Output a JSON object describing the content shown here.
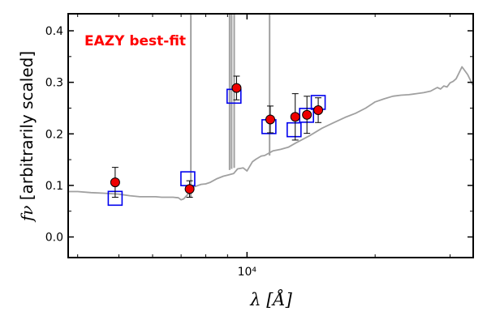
{
  "chart_data": {
    "type": "scatter",
    "title": "",
    "annotation": {
      "text": "EAZY best-fit",
      "color": "#ff0000"
    },
    "xlabel": {
      "symbol": "λ",
      "unit": "[Å]"
    },
    "ylabel": {
      "symbol": "fν",
      "text": "[arbitrarily scaled]"
    },
    "xscale": "log",
    "xlim": [
      3800,
      34000
    ],
    "ylim": [
      -0.04,
      0.433
    ],
    "xticks": [
      {
        "value": 10000,
        "label": "10⁴"
      }
    ],
    "yticks": [
      {
        "value": 0.0,
        "label": "0.0"
      },
      {
        "value": 0.1,
        "label": "0.1"
      },
      {
        "value": 0.2,
        "label": "0.2"
      },
      {
        "value": 0.3,
        "label": "0.3"
      },
      {
        "value": 0.4,
        "label": "0.4"
      }
    ],
    "colors": {
      "template": "#a0a0a0",
      "model_markers": "#0000ee",
      "observed_markers": "#ee0000",
      "errorbars": "#000000"
    },
    "series": [
      {
        "name": "EAZY best-fit template",
        "type": "line",
        "x": [
          3800,
          4000,
          4300,
          4600,
          5000,
          5300,
          5600,
          5900,
          6100,
          6300,
          6500,
          6700,
          6900,
          7000,
          7100,
          7300,
          7500,
          7800,
          8000,
          8200,
          8500,
          8800,
          9000,
          9300,
          9500,
          9800,
          10000,
          10300,
          10500,
          10800,
          11000,
          11500,
          12000,
          12500,
          13000,
          14000,
          15000,
          16000,
          17000,
          18000,
          19000,
          20000,
          21000,
          22000,
          23000,
          24000,
          25000,
          26000,
          27000,
          28000,
          28500,
          29000,
          29500,
          30000,
          30500,
          31000,
          32000,
          33000,
          34000
        ],
        "y": [
          0.088,
          0.088,
          0.086,
          0.085,
          0.083,
          0.08,
          0.078,
          0.078,
          0.078,
          0.077,
          0.077,
          0.077,
          0.076,
          0.072,
          0.074,
          0.085,
          0.097,
          0.102,
          0.103,
          0.106,
          0.113,
          0.118,
          0.12,
          0.123,
          0.132,
          0.134,
          0.128,
          0.146,
          0.151,
          0.157,
          0.158,
          0.167,
          0.17,
          0.174,
          0.182,
          0.196,
          0.211,
          0.222,
          0.232,
          0.24,
          0.25,
          0.262,
          0.268,
          0.273,
          0.275,
          0.276,
          0.278,
          0.28,
          0.283,
          0.29,
          0.287,
          0.293,
          0.291,
          0.299,
          0.302,
          0.307,
          0.33,
          0.315,
          0.293
        ]
      },
      {
        "name": "template emission lines",
        "type": "vlines",
        "x": [
          7380,
          9100,
          9200,
          9330,
          11300
        ],
        "y0": [
          0.076,
          0.13,
          0.132,
          0.134,
          0.158
        ],
        "y1": [
          0.433,
          0.433,
          0.433,
          0.433,
          0.433
        ]
      },
      {
        "name": "model photometry",
        "type": "scatter",
        "marker": "square",
        "x": [
          4900,
          7260,
          9320,
          11260,
          12900,
          13800,
          14700
        ],
        "y": [
          0.075,
          0.113,
          0.273,
          0.214,
          0.208,
          0.236,
          0.261
        ]
      },
      {
        "name": "observed photometry",
        "type": "scatter",
        "marker": "circle",
        "x": [
          4900,
          7330,
          9450,
          11340,
          12980,
          13830,
          14700
        ],
        "y": [
          0.106,
          0.093,
          0.289,
          0.228,
          0.233,
          0.237,
          0.246
        ],
        "yerr": [
          0.029,
          0.016,
          0.023,
          0.026,
          0.045,
          0.036,
          0.024
        ]
      }
    ]
  }
}
